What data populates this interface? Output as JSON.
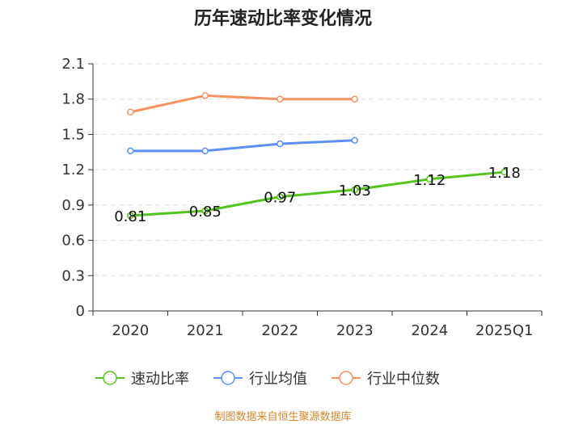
{
  "chart_data": {
    "type": "line",
    "title": "历年速动比率变化情况",
    "categories": [
      "2020",
      "2021",
      "2022",
      "2023",
      "2024",
      "2025Q1"
    ],
    "ylim": [
      0,
      2.1
    ],
    "yticks": [
      "0",
      "0.3",
      "0.6",
      "0.9",
      "1.2",
      "1.5",
      "1.8",
      "2.1"
    ],
    "grid": true,
    "legend_position": "bottom",
    "series": [
      {
        "name": "速动比率",
        "color": "#52c41a",
        "values": [
          0.81,
          0.85,
          0.97,
          1.03,
          1.12,
          1.18
        ],
        "labels": [
          "0.81",
          "0.85",
          "0.97",
          "1.03",
          "1.12",
          "1.18"
        ]
      },
      {
        "name": "行业均值",
        "color": "#5b8ff9",
        "values": [
          1.36,
          1.36,
          1.42,
          1.45,
          null,
          null
        ]
      },
      {
        "name": "行业中位数",
        "color": "#f7925f",
        "values": [
          1.69,
          1.83,
          1.8,
          1.8,
          null,
          null
        ]
      }
    ]
  },
  "footer": {
    "source": "制图数据来自恒生聚源数据库",
    "color": "#d4862a"
  }
}
